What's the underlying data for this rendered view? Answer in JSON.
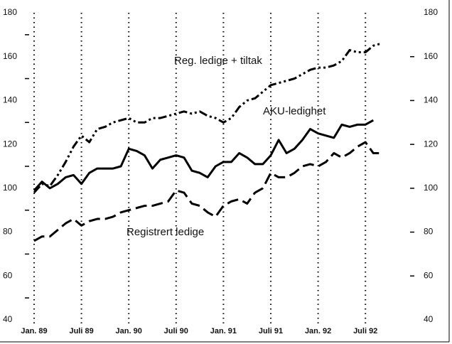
{
  "chart_data": {
    "type": "line",
    "categories": [
      "Jan. 89",
      null,
      null,
      null,
      null,
      null,
      "Juli 89",
      null,
      null,
      null,
      null,
      null,
      "Jan. 90",
      null,
      null,
      null,
      null,
      null,
      "Juli 90",
      null,
      null,
      null,
      null,
      null,
      "Jan. 91",
      null,
      null,
      null,
      null,
      null,
      "Juli 91",
      null,
      null,
      null,
      null,
      null,
      "Jan. 92",
      null,
      null,
      null,
      null,
      null,
      "Juli 92",
      null,
      null
    ],
    "series": [
      {
        "name": "Reg. ledige + tiltak",
        "color": "#000000",
        "dash": "dash-dot-dot",
        "values": [
          98,
          102,
          101,
          106,
          112,
          119,
          124,
          121,
          127,
          128,
          130,
          131,
          132,
          130,
          130,
          132,
          132,
          133,
          134,
          135,
          134,
          135,
          133,
          132,
          130,
          132,
          137,
          140,
          141,
          144,
          147,
          148,
          149,
          150,
          152,
          154,
          155,
          155,
          156,
          158,
          163,
          162,
          162,
          165,
          166
        ]
      },
      {
        "name": "AKU-ledighet",
        "color": "#000000",
        "dash": "solid",
        "values": [
          99,
          103,
          100,
          102,
          105,
          106,
          102,
          107,
          109,
          109,
          109,
          110,
          118,
          117,
          115,
          109,
          113,
          114,
          115,
          114,
          108,
          107,
          105,
          110,
          112,
          112,
          116,
          114,
          111,
          111,
          115,
          122,
          116,
          118,
          122,
          127,
          125,
          124,
          123,
          129,
          128,
          129,
          129,
          131,
          null
        ]
      },
      {
        "name": "Registrert ledige",
        "color": "#000000",
        "dash": "dashed",
        "values": [
          76,
          78,
          78,
          81,
          84,
          86,
          83,
          85,
          86,
          86,
          87,
          89,
          90,
          91,
          92,
          92,
          93,
          94,
          99,
          98,
          93,
          92,
          89,
          87,
          92,
          94,
          95,
          93,
          98,
          100,
          107,
          105,
          105,
          107,
          110,
          111,
          110,
          112,
          116,
          114,
          116,
          119,
          121,
          116,
          116
        ]
      }
    ],
    "ylim": [
      40,
      180
    ],
    "yticks": [
      40,
      60,
      80,
      100,
      120,
      140,
      160,
      180
    ],
    "yminorticks": [
      50,
      70,
      90,
      110,
      130,
      150,
      170
    ],
    "y2lim": [
      40,
      180
    ],
    "y2ticks": [
      40,
      60,
      80,
      100,
      120,
      140,
      160,
      180
    ],
    "grid": "dotted-vertical"
  }
}
